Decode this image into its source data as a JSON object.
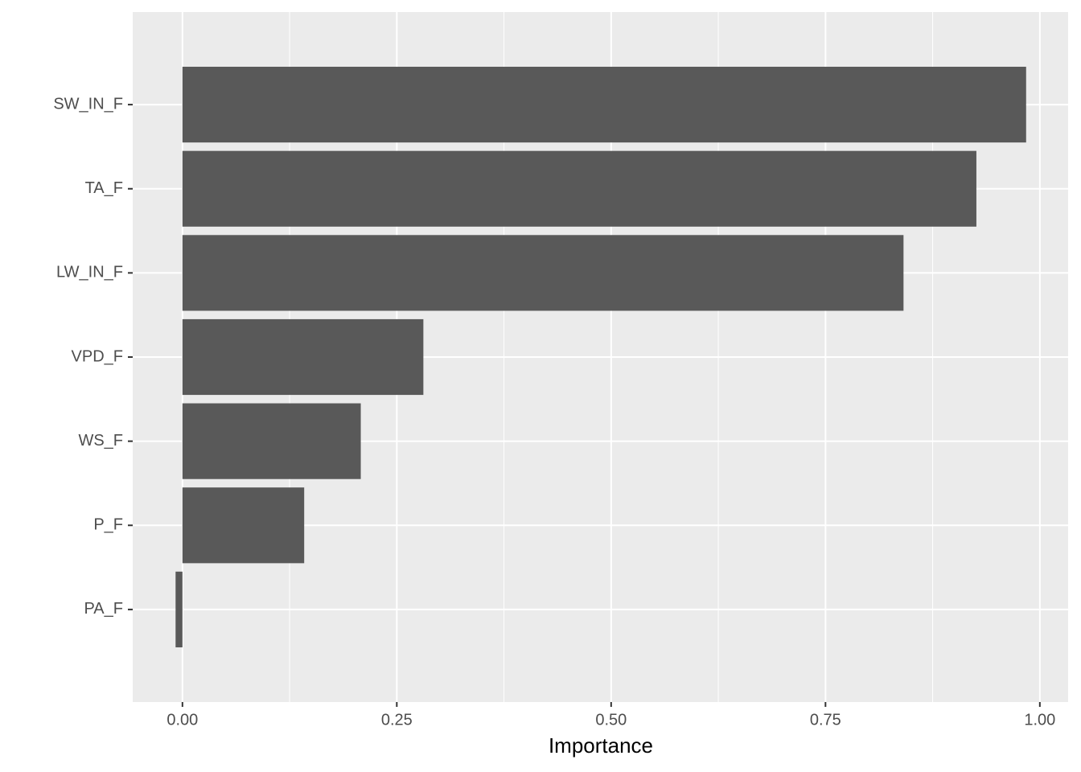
{
  "chart_data": {
    "type": "barh",
    "xlabel": "Importance",
    "categories": [
      "SW_IN_F",
      "TA_F",
      "LW_IN_F",
      "VPD_F",
      "WS_F",
      "P_F",
      "PA_F"
    ],
    "values": [
      0.984,
      0.926,
      0.841,
      0.281,
      0.208,
      0.142,
      -0.008
    ],
    "color": "#595959",
    "xlim": [
      -0.058,
      1.033
    ],
    "xticks": [
      {
        "value": 0,
        "label": "0.00"
      },
      {
        "value": 0.25,
        "label": "0.25"
      },
      {
        "value": 0.5,
        "label": "0.50"
      },
      {
        "value": 0.75,
        "label": "0.75"
      },
      {
        "value": 1,
        "label": "1.00"
      }
    ],
    "grid": true
  }
}
